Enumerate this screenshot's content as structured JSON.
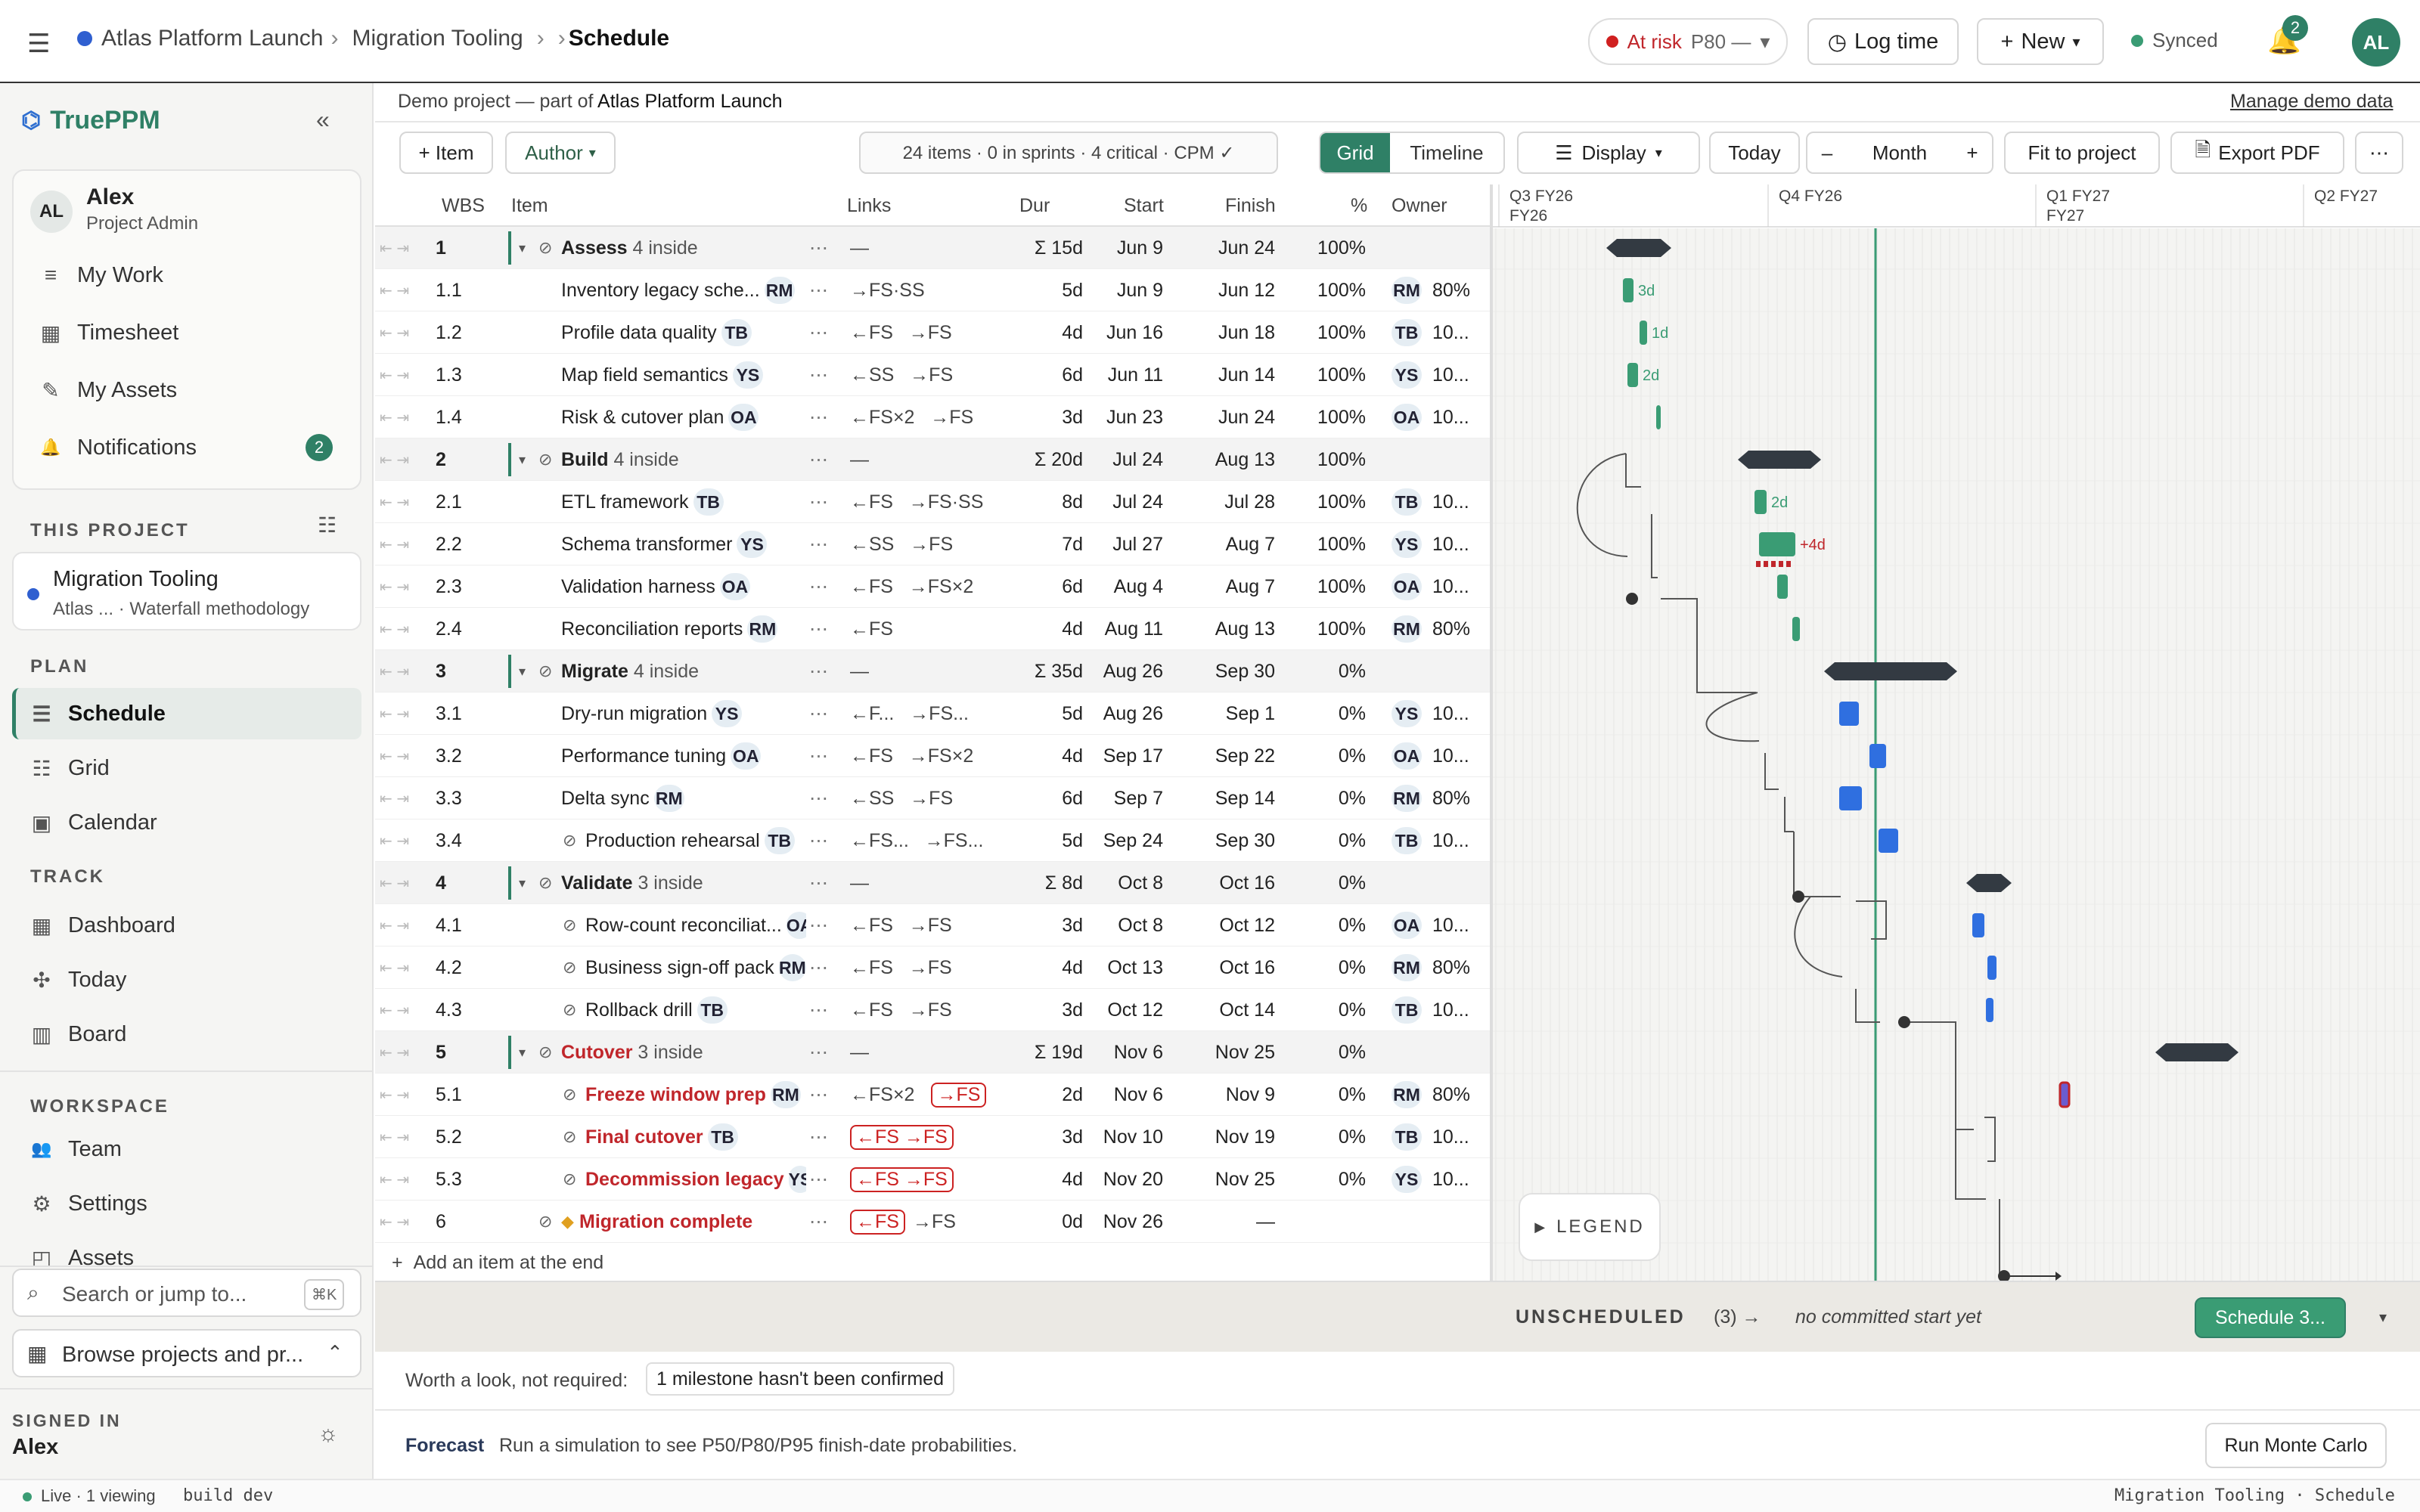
{
  "topbar": {
    "breadcrumb_root": "Atlas Platform Launch",
    "breadcrumb_project": "Migration Tooling",
    "breadcrumb_page": "Schedule",
    "risk_label": "At risk",
    "risk_detail": "P80 —",
    "log_time": "Log time",
    "new_label": "New",
    "sync_label": "Synced",
    "notif_count": "2",
    "avatar": "AL"
  },
  "sidebar": {
    "brand": "TruePPM",
    "user": {
      "initials": "AL",
      "name": "Alex",
      "role": "Project Admin"
    },
    "personal": [
      {
        "icon": "≡",
        "label": "My Work"
      },
      {
        "icon": "▦",
        "label": "Timesheet"
      },
      {
        "icon": "✎",
        "label": "My Assets"
      },
      {
        "icon": "🔔",
        "label": "Notifications",
        "badge": "2"
      }
    ],
    "this_project_label": "THIS PROJECT",
    "project": {
      "name": "Migration Tooling",
      "sub": "Atlas ... · Waterfall methodology"
    },
    "plan_label": "PLAN",
    "plan": [
      {
        "icon": "☰",
        "label": "Schedule"
      },
      {
        "icon": "☷",
        "label": "Grid"
      },
      {
        "icon": "▣",
        "label": "Calendar"
      }
    ],
    "track_label": "TRACK",
    "track": [
      {
        "icon": "▦",
        "label": "Dashboard"
      },
      {
        "icon": "✣",
        "label": "Today"
      },
      {
        "icon": "▥",
        "label": "Board"
      }
    ],
    "workspace_label": "WORKSPACE",
    "workspace": [
      {
        "icon": "👥",
        "label": "Team"
      },
      {
        "icon": "⚙",
        "label": "Settings"
      },
      {
        "icon": "◰",
        "label": "Assets"
      }
    ],
    "search_placeholder": "Search or jump to...",
    "search_shortcut": "⌘K",
    "browse": "Browse projects and pr...",
    "signed_in_label": "SIGNED IN",
    "signed_in_name": "Alex"
  },
  "main": {
    "demo_note_prefix": "Demo project — part of ",
    "demo_note_project": "Atlas Platform Launch",
    "manage_demo": "Manage demo data",
    "toolbar": {
      "add_item": "+ Item",
      "author": "Author",
      "stats": "24 items · 0 in sprints · 4 critical · CPM ✓",
      "grid": "Grid",
      "timeline": "Timeline",
      "display": "Display",
      "today": "Today",
      "zoom_minus": "–",
      "zoom_level": "Month",
      "zoom_plus": "+",
      "fit": "Fit to project",
      "export": "Export PDF"
    },
    "columns": {
      "wbs": "WBS",
      "item": "Item",
      "links": "Links",
      "dur": "Dur",
      "start": "Start",
      "finish": "Finish",
      "pct": "%",
      "owner": "Owner"
    },
    "quarters": [
      {
        "label": "Q3 FY26",
        "sub": "FY26"
      },
      {
        "label": "Q4 FY26",
        "sub": ""
      },
      {
        "label": "Q1 FY27",
        "sub": "FY27"
      },
      {
        "label": "Q2 FY27",
        "sub": ""
      }
    ],
    "rows": [
      {
        "wbs": "1",
        "name": "Assess",
        "inside": "4 inside",
        "sum": true,
        "links": "—",
        "dur": "Σ 15d",
        "start": "Jun 9",
        "finish": "Jun 24",
        "pct": "100%"
      },
      {
        "wbs": "1.1",
        "name": "Inventory legacy sche...",
        "owner": "RM",
        "links": "→FS·SS",
        "dur": "5d",
        "start": "Jun 9",
        "finish": "Jun 12",
        "pct": "100%",
        "alloc": "80%"
      },
      {
        "wbs": "1.2",
        "name": "Profile data quality",
        "owner": "TB",
        "links": "←FS   →FS",
        "dur": "4d",
        "start": "Jun 16",
        "finish": "Jun 18",
        "pct": "100%",
        "alloc": "10..."
      },
      {
        "wbs": "1.3",
        "name": "Map field semantics",
        "owner": "YS",
        "links": "←SS   →FS",
        "dur": "6d",
        "start": "Jun 11",
        "finish": "Jun 14",
        "pct": "100%",
        "alloc": "10..."
      },
      {
        "wbs": "1.4",
        "name": "Risk & cutover plan",
        "owner": "OA",
        "links": "←FS×2   →FS",
        "dur": "3d",
        "start": "Jun 23",
        "finish": "Jun 24",
        "pct": "100%",
        "alloc": "10..."
      },
      {
        "wbs": "2",
        "name": "Build",
        "inside": "4 inside",
        "sum": true,
        "links": "—",
        "dur": "Σ 20d",
        "start": "Jul 24",
        "finish": "Aug 13",
        "pct": "100%"
      },
      {
        "wbs": "2.1",
        "name": "ETL framework",
        "owner": "TB",
        "links": "←FS   →FS·SS",
        "dur": "8d",
        "start": "Jul 24",
        "finish": "Jul 28",
        "pct": "100%",
        "alloc": "10..."
      },
      {
        "wbs": "2.2",
        "name": "Schema transformer",
        "owner": "YS",
        "links": "←SS   →FS",
        "dur": "7d",
        "start": "Jul 27",
        "finish": "Aug 7",
        "pct": "100%",
        "alloc": "10..."
      },
      {
        "wbs": "2.3",
        "name": "Validation harness",
        "owner": "OA",
        "links": "←FS   →FS×2",
        "dur": "6d",
        "start": "Aug 4",
        "finish": "Aug 7",
        "pct": "100%",
        "alloc": "10..."
      },
      {
        "wbs": "2.4",
        "name": "Reconciliation reports",
        "owner": "RM",
        "links": "←FS",
        "dur": "4d",
        "start": "Aug 11",
        "finish": "Aug 13",
        "pct": "100%",
        "alloc": "80%"
      },
      {
        "wbs": "3",
        "name": "Migrate",
        "inside": "4 inside",
        "sum": true,
        "links": "—",
        "dur": "Σ 35d",
        "start": "Aug 26",
        "finish": "Sep 30",
        "pct": "0%"
      },
      {
        "wbs": "3.1",
        "name": "Dry-run migration",
        "owner": "YS",
        "links": "←F...   →FS...",
        "dur": "5d",
        "start": "Aug 26",
        "finish": "Sep 1",
        "pct": "0%",
        "alloc": "10..."
      },
      {
        "wbs": "3.2",
        "name": "Performance tuning",
        "owner": "OA",
        "links": "←FS   →FS×2",
        "dur": "4d",
        "start": "Sep 17",
        "finish": "Sep 22",
        "pct": "0%",
        "alloc": "10..."
      },
      {
        "wbs": "3.3",
        "name": "Delta sync",
        "owner": "RM",
        "links": "←SS   →FS",
        "dur": "6d",
        "start": "Sep 7",
        "finish": "Sep 14",
        "pct": "0%",
        "alloc": "80%"
      },
      {
        "wbs": "3.4",
        "name": "Production rehearsal",
        "owner": "TB",
        "links": "←FS...   →FS...",
        "dur": "5d",
        "start": "Sep 24",
        "finish": "Sep 30",
        "pct": "0%",
        "alloc": "10...",
        "check": true
      },
      {
        "wbs": "4",
        "name": "Validate",
        "inside": "3 inside",
        "sum": true,
        "links": "—",
        "dur": "Σ 8d",
        "start": "Oct 8",
        "finish": "Oct 16",
        "pct": "0%"
      },
      {
        "wbs": "4.1",
        "name": "Row-count reconciliat...",
        "owner": "OA",
        "links": "←FS   →FS",
        "dur": "3d",
        "start": "Oct 8",
        "finish": "Oct 12",
        "pct": "0%",
        "alloc": "10...",
        "check": true
      },
      {
        "wbs": "4.2",
        "name": "Business sign-off pack",
        "owner": "RM",
        "links": "←FS   →FS",
        "dur": "4d",
        "start": "Oct 13",
        "finish": "Oct 16",
        "pct": "0%",
        "alloc": "80%",
        "check": true
      },
      {
        "wbs": "4.3",
        "name": "Rollback drill",
        "owner": "TB",
        "links": "←FS   →FS",
        "dur": "3d",
        "start": "Oct 12",
        "finish": "Oct 14",
        "pct": "0%",
        "alloc": "10...",
        "check": true
      },
      {
        "wbs": "5",
        "name": "Cutover",
        "inside": "3 inside",
        "sum": true,
        "crit": true,
        "links": "—",
        "dur": "Σ 19d",
        "start": "Nov 6",
        "finish": "Nov 25",
        "pct": "0%"
      },
      {
        "wbs": "5.1",
        "name": "Freeze window prep",
        "owner": "RM",
        "crit": true,
        "check": true,
        "links": "←FS×2",
        "links_red": "→FS",
        "dur": "2d",
        "start": "Nov 6",
        "finish": "Nov 9",
        "pct": "0%",
        "alloc": "80%"
      },
      {
        "wbs": "5.2",
        "name": "Final cutover",
        "owner": "TB",
        "crit": true,
        "check": true,
        "links": "",
        "links_red": "←FS  →FS",
        "dur": "3d",
        "start": "Nov 10",
        "finish": "Nov 19",
        "pct": "0%",
        "alloc": "10..."
      },
      {
        "wbs": "5.3",
        "name": "Decommission legacy",
        "owner": "YS",
        "crit": true,
        "check": true,
        "links": "",
        "links_red": "←FS  →FS",
        "dur": "4d",
        "start": "Nov 20",
        "finish": "Nov 25",
        "pct": "0%",
        "alloc": "10..."
      },
      {
        "wbs": "6",
        "name": "Migration complete",
        "milestone": true,
        "crit": true,
        "check": true,
        "links": "→FS",
        "links_red": "←FS",
        "dur": "0d",
        "start": "Nov 26",
        "finish": "—",
        "pct": ""
      }
    ],
    "add_item_end": "Add an item at the end",
    "legend": "LEGEND",
    "unscheduled": "UNSCHEDULED",
    "unscheduled_count": "(3) →",
    "unscheduled_note": "no committed start yet",
    "schedule_btn": "Schedule 3...",
    "worth_look": "Worth a look, not required:",
    "milestone_warn": "1 milestone hasn't been confirmed",
    "forecast_label": "Forecast",
    "forecast_text": "Run a simulation to see P50/P80/P95 finish-date probabilities.",
    "run_mc": "Run Monte Carlo"
  },
  "statusbar": {
    "live": "Live · 1 viewing",
    "build": "build dev",
    "right": "Migration Tooling · Schedule"
  },
  "colors": {
    "green": "#3a9c74",
    "blue": "#2f6fe0",
    "red": "#c0262b",
    "dark": "#333a42",
    "today": "#3a9c74"
  }
}
